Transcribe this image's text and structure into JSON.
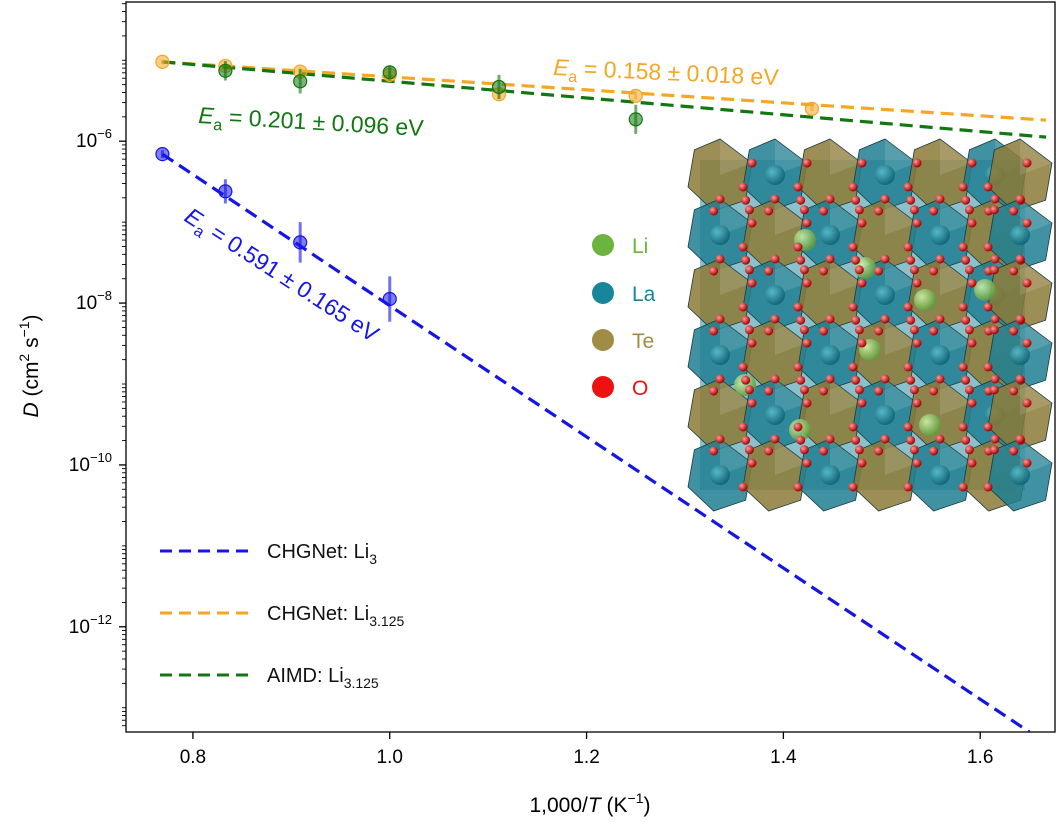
{
  "chart_data": {
    "type": "scatter",
    "xlabel_prefix": "1,000/",
    "xlabel_var": "T",
    "xlabel_unit": " (K",
    "xlabel_unit_exp": "−1",
    "xlabel_close": ")",
    "ylabel_var": "D",
    "ylabel_unit": " (cm",
    "ylabel_exp2": "2",
    "ylabel_s": " s",
    "ylabel_expm1": "−1",
    "ylabel_close": ")",
    "xlim": [
      0.732,
      1.676
    ],
    "y_log10_lim": [
      -13.3,
      -4.28
    ],
    "y_scale": "log",
    "grid": false,
    "legend_placement": "lower-left",
    "xticks": [
      0.8,
      1.0,
      1.2,
      1.4,
      1.6
    ],
    "xtick_labels": [
      "0.8",
      "1.0",
      "1.2",
      "1.4",
      "1.6"
    ],
    "yticks_exp": [
      -6,
      -8,
      -10,
      -12
    ],
    "ytick_base": "10",
    "ytick_exp_labels": [
      "−6",
      "−8",
      "−10",
      "−12"
    ],
    "series": [
      {
        "key": "chgnet_li3",
        "name_main": "CHGNet: Li",
        "name_sub": "3",
        "color": "#1515e6",
        "points": [
          {
            "x": 0.769,
            "log10D": -6.16,
            "err": 0.05
          },
          {
            "x": 0.833,
            "log10D": -6.62,
            "err": 0.15
          },
          {
            "x": 0.909,
            "log10D": -7.25,
            "err": 0.25
          },
          {
            "x": 1.0,
            "log10D": -7.95,
            "err": 0.28
          }
        ],
        "fit": {
          "x": [
            0.769,
            1.65
          ],
          "log10D": [
            -6.16,
            -13.3
          ]
        },
        "ea_italic": "E",
        "ea_sub": "a",
        "ea_value": " = 0.591 ± 0.165 eV"
      },
      {
        "key": "chgnet_li3125",
        "name_main": "CHGNet: Li",
        "name_sub": "3.125",
        "color": "#f5a623",
        "points": [
          {
            "x": 0.769,
            "log10D": -5.02,
            "err": 0.03
          },
          {
            "x": 0.833,
            "log10D": -5.07,
            "err": 0.05
          },
          {
            "x": 0.909,
            "log10D": -5.14,
            "err": 0.05
          },
          {
            "x": 1.0,
            "log10D": -5.18,
            "err": 0.05
          },
          {
            "x": 1.111,
            "log10D": -5.42,
            "err": 0.05
          },
          {
            "x": 1.25,
            "log10D": -5.44,
            "err": 0.05
          },
          {
            "x": 1.429,
            "log10D": -5.6,
            "err": 0.03
          }
        ],
        "fit": {
          "x": [
            0.769,
            1.667
          ],
          "log10D": [
            -5.02,
            -5.74
          ]
        },
        "ea_italic": "E",
        "ea_sub": "a",
        "ea_value": " = 0.158 ± 0.018 eV"
      },
      {
        "key": "aimd_li3125",
        "name_main": "AIMD: Li",
        "name_sub": "3.125",
        "color": "#117711",
        "points": [
          {
            "x": 0.833,
            "log10D": -5.13,
            "err": 0.12
          },
          {
            "x": 0.909,
            "log10D": -5.26,
            "err": 0.15
          },
          {
            "x": 1.0,
            "log10D": -5.15,
            "err": 0.08
          },
          {
            "x": 1.111,
            "log10D": -5.33,
            "err": 0.15
          },
          {
            "x": 1.25,
            "log10D": -5.73,
            "err": 0.18
          }
        ],
        "fit": {
          "x": [
            0.769,
            1.667
          ],
          "log10D": [
            -5.02,
            -5.95
          ]
        },
        "ea_italic": "E",
        "ea_sub": "a",
        "ea_value": " = 0.201 ± 0.096 eV"
      }
    ],
    "inset_legend": [
      {
        "label": "Li",
        "color": "#6db33f"
      },
      {
        "label": "La",
        "color": "#17869a"
      },
      {
        "label": "Te",
        "color": "#a08c45"
      },
      {
        "label": "O",
        "color": "#ee1111"
      }
    ]
  }
}
